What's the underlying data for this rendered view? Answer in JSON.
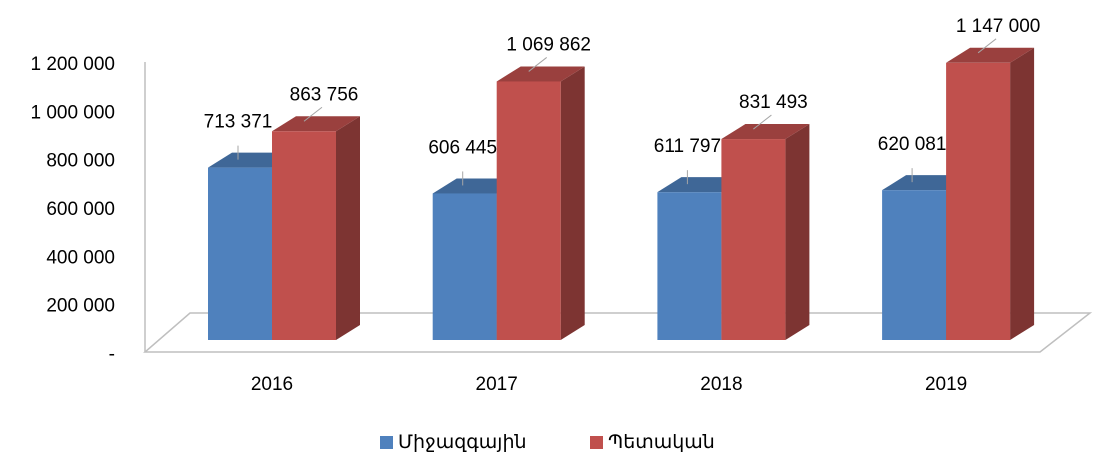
{
  "chart_data": {
    "type": "bar3d",
    "categories": [
      "2016",
      "2017",
      "2018",
      "2019"
    ],
    "series": [
      {
        "name": "Միջազգային",
        "color": "#4f81bd",
        "values": [
          713371,
          606445,
          611797,
          620081
        ],
        "value_labels": [
          "713 371",
          "606 445",
          "611 797",
          "620 081"
        ]
      },
      {
        "name": "Պետական",
        "color": "#c0504d",
        "values": [
          863756,
          1069862,
          831493,
          1147000
        ],
        "value_labels": [
          "863 756",
          "1 069 862",
          "831 493",
          "1 147 000"
        ]
      }
    ],
    "ylim": [
      0,
      1200000
    ],
    "yticks": [
      {
        "value": 0,
        "label": "-"
      },
      {
        "value": 200000,
        "label": "200 000"
      },
      {
        "value": 400000,
        "label": "400 000"
      },
      {
        "value": 600000,
        "label": "600 000"
      },
      {
        "value": 800000,
        "label": "800 000"
      },
      {
        "value": 1000000,
        "label": "1 000 000"
      },
      {
        "value": 1200000,
        "label": "1 200 000"
      }
    ],
    "legend": "bottom"
  }
}
